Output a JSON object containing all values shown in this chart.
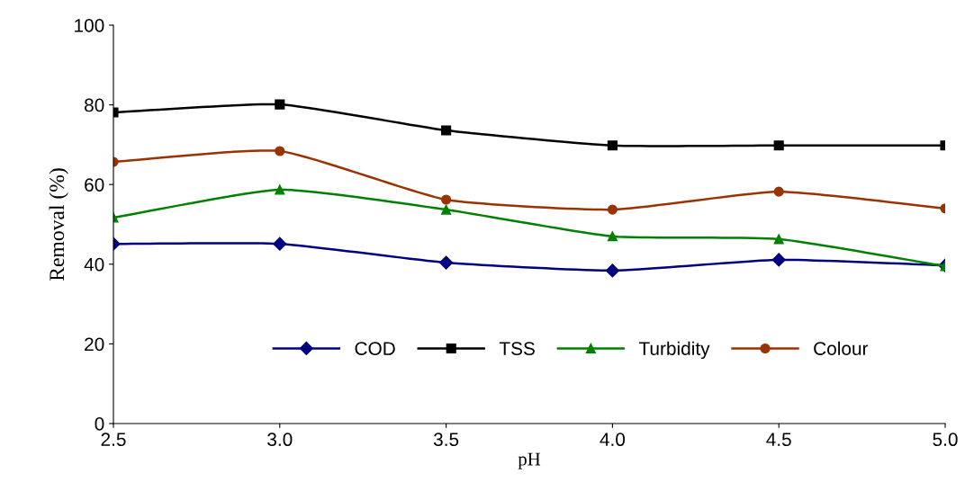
{
  "chart_data": {
    "type": "line",
    "xlabel": "pH",
    "ylabel": "Removal (%)",
    "x": [
      2.5,
      3.0,
      3.5,
      4.0,
      4.5,
      5.0
    ],
    "series": [
      {
        "name": "COD",
        "color": "#000080",
        "marker": "diamond",
        "values": [
          45.1,
          45.1,
          40.4,
          38.4,
          41.1,
          39.7
        ]
      },
      {
        "name": "TSS",
        "color": "#000000",
        "marker": "square",
        "values": [
          78.1,
          80.1,
          73.6,
          69.8,
          69.8,
          69.8
        ]
      },
      {
        "name": "Turbidity",
        "color": "#008000",
        "marker": "triangle",
        "values": [
          51.7,
          58.7,
          53.7,
          47.0,
          46.3,
          39.5
        ]
      },
      {
        "name": "Colour",
        "color": "#993300",
        "marker": "circle",
        "values": [
          65.7,
          68.4,
          56.2,
          53.7,
          58.2,
          54.0
        ]
      }
    ],
    "xlim": [
      2.5,
      5.0
    ],
    "xticks": [
      {
        "value": 2.5,
        "label": "2.5"
      },
      {
        "value": 3.0,
        "label": "3.0"
      },
      {
        "value": 3.5,
        "label": "3.5"
      },
      {
        "value": 4.0,
        "label": "4.0"
      },
      {
        "value": 4.5,
        "label": "4.5"
      },
      {
        "value": 5.0,
        "label": "5.0"
      }
    ],
    "ylim": [
      0,
      100
    ],
    "yticks": [
      0,
      20,
      40,
      60,
      80,
      100
    ],
    "grid": false,
    "legend": "bottom",
    "line_style": "solid"
  }
}
